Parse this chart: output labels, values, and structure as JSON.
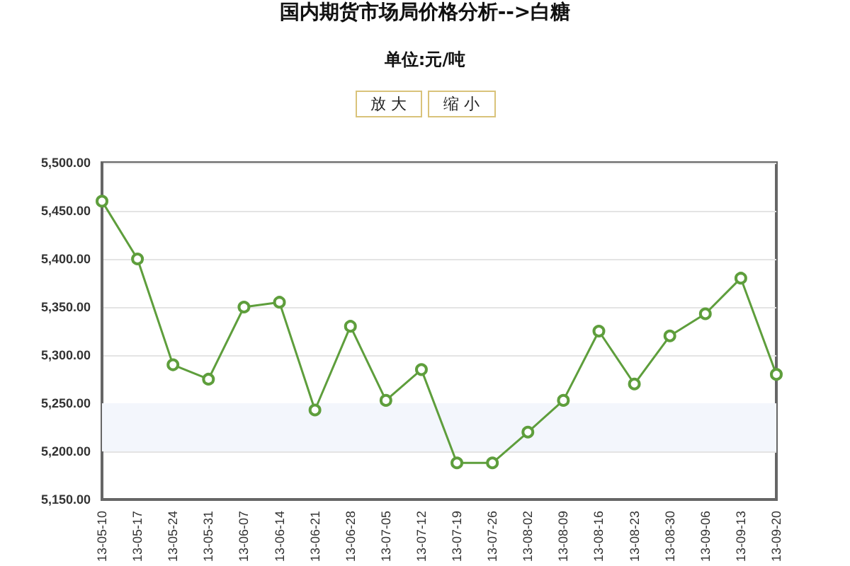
{
  "chart_data": {
    "type": "line",
    "title": "国内期货市场局价格分析-->白糖",
    "subtitle": "单位:元/吨",
    "annotations": [
      "放 大",
      "缩 小"
    ],
    "categories": [
      "13-05-10",
      "13-05-17",
      "13-05-24",
      "13-05-31",
      "13-06-07",
      "13-06-14",
      "13-06-21",
      "13-06-28",
      "13-07-05",
      "13-07-12",
      "13-07-19",
      "13-07-26",
      "13-08-02",
      "13-08-09",
      "13-08-16",
      "13-08-23",
      "13-08-30",
      "13-09-06",
      "13-09-13",
      "13-09-20"
    ],
    "series": [
      {
        "color": "#5e9e3c",
        "values": [
          5460,
          5400,
          5290,
          5275,
          5350,
          5355,
          5243,
          5330,
          5253,
          5285,
          5188,
          5188,
          5220,
          5253,
          5325,
          5270,
          5320,
          5343,
          5380,
          5280
        ]
      }
    ],
    "ylim": [
      5150,
      5500
    ],
    "yticks": [
      {
        "value": 5150,
        "label": "5,150.00"
      },
      {
        "value": 5200,
        "label": "5,200.00"
      },
      {
        "value": 5250,
        "label": "5,250.00"
      },
      {
        "value": 5300,
        "label": "5,300.00"
      },
      {
        "value": 5350,
        "label": "5,350.00"
      },
      {
        "value": 5400,
        "label": "5,400.00"
      },
      {
        "value": 5450,
        "label": "5,450.00"
      },
      {
        "value": 5500,
        "label": "5,500.00"
      }
    ],
    "bands": [
      {
        "axis": "y",
        "from": 5200,
        "to": 5250,
        "color": "#f3f6fc"
      }
    ],
    "grid": "y",
    "marker": "circle",
    "line_style": "solid"
  }
}
